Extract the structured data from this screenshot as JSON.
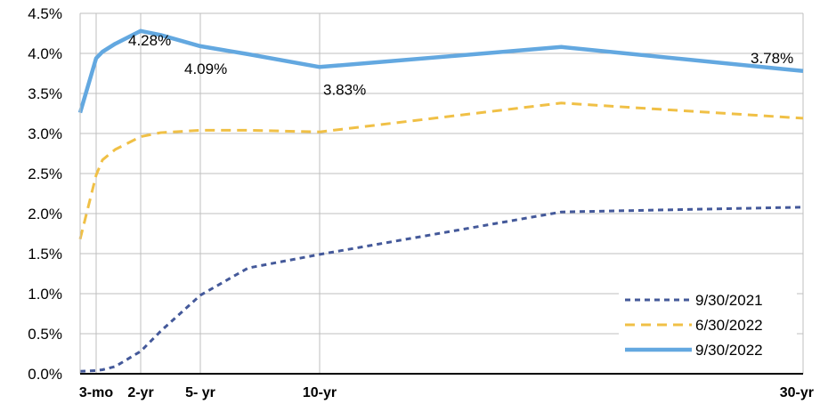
{
  "chart_data": {
    "type": "line",
    "title": "",
    "xlabel": "",
    "ylabel": "",
    "ylim": [
      0,
      4.5
    ],
    "y_ticks": [
      "0.0%",
      "0.5%",
      "1.0%",
      "1.5%",
      "2.0%",
      "2.5%",
      "3.0%",
      "3.5%",
      "4.0%",
      "4.5%"
    ],
    "y_tick_values": [
      0,
      0.5,
      1.0,
      1.5,
      2.0,
      2.5,
      3.0,
      3.5,
      4.0,
      4.5
    ],
    "x_maturities_years": [
      0.0833,
      0.25,
      0.5,
      1,
      2,
      3,
      5,
      7,
      10,
      20,
      30
    ],
    "x_tick_labels": [
      {
        "label": "3-mo",
        "x": 0.25
      },
      {
        "label": "2-yr",
        "x": 2
      },
      {
        "label": "5- yr",
        "x": 5
      },
      {
        "label": "10-yr",
        "x": 10
      },
      {
        "label": "30-yr",
        "x": 30
      }
    ],
    "vertical_gridlines_at": [
      0.25,
      2,
      5,
      10,
      30
    ],
    "horizontal_grid": true,
    "legend_position": "bottom-right",
    "series": [
      {
        "name": "9/30/2021",
        "style": "dotted",
        "color": "#44599A",
        "values": [
          0.03,
          0.04,
          0.05,
          0.09,
          0.28,
          0.53,
          0.98,
          1.32,
          1.49,
          2.02,
          2.08
        ]
      },
      {
        "name": "6/30/2022",
        "style": "dashed",
        "color": "#F0C046",
        "values": [
          1.68,
          2.48,
          2.67,
          2.8,
          2.96,
          3.01,
          3.04,
          3.04,
          3.02,
          3.38,
          3.19
        ]
      },
      {
        "name": "9/30/2022",
        "style": "solid",
        "color": "#63A8E0",
        "values": [
          3.26,
          3.94,
          4.02,
          4.12,
          4.28,
          4.23,
          4.09,
          3.99,
          3.83,
          4.08,
          3.78
        ]
      }
    ],
    "data_labels": [
      {
        "text": "4.28%",
        "x": 2,
        "y": 4.28
      },
      {
        "text": "4.09%",
        "x": 5,
        "y": 4.09
      },
      {
        "text": "3.83%",
        "x": 10,
        "y": 3.83
      },
      {
        "text": "3.78%",
        "x": 30,
        "y": 3.78
      }
    ]
  }
}
